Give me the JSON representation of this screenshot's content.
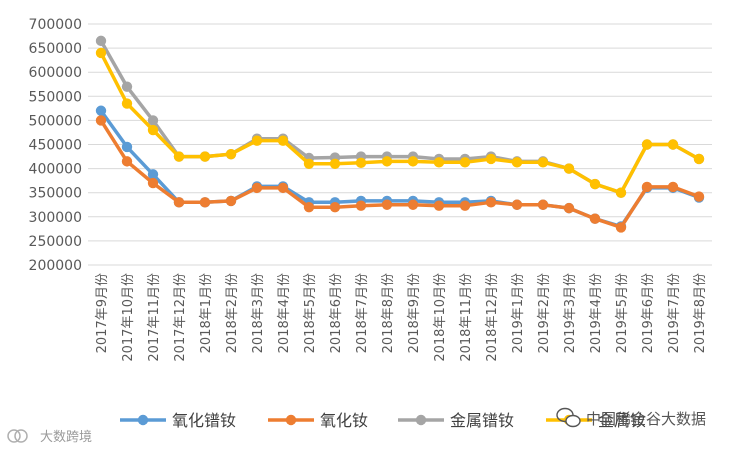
{
  "chart_data": {
    "type": "line",
    "title": "",
    "xlabel": "",
    "ylabel": "",
    "ylim": [
      200000,
      700000
    ],
    "ytick_step": 50000,
    "grid": true,
    "legend_position": "bottom",
    "categories": [
      "2017年9月份",
      "2017年10月份",
      "2017年11月份",
      "2017年12月份",
      "2018年1月份",
      "2018年2月份",
      "2018年3月份",
      "2018年4月份",
      "2018年5月份",
      "2018年6月份",
      "2018年7月份",
      "2018年8月份",
      "2018年9月份",
      "2018年10月份",
      "2018年11月份",
      "2018年12月份",
      "2019年1月份",
      "2019年2月份",
      "2019年3月份",
      "2019年4月份",
      "2019年5月份",
      "2019年6月份",
      "2019年7月份",
      "2019年8月份"
    ],
    "series": [
      {
        "name": "氧化镨钕",
        "color": "#5B9BD5",
        "values": [
          520000,
          445000,
          388000,
          330000,
          330000,
          333000,
          363000,
          363000,
          330000,
          330000,
          333000,
          333000,
          333000,
          330000,
          330000,
          333000,
          325000,
          325000,
          318000,
          296000,
          280000,
          360000,
          360000,
          340000
        ]
      },
      {
        "name": "氧化钕",
        "color": "#ED7D31",
        "values": [
          500000,
          415000,
          370000,
          330000,
          330000,
          333000,
          360000,
          360000,
          320000,
          320000,
          323000,
          325000,
          325000,
          323000,
          323000,
          330000,
          325000,
          325000,
          318000,
          296000,
          278000,
          362000,
          362000,
          342000
        ]
      },
      {
        "name": "金属镨钕",
        "color": "#A5A5A5",
        "values": [
          665000,
          570000,
          500000,
          425000,
          425000,
          430000,
          462000,
          462000,
          422000,
          423000,
          425000,
          425000,
          425000,
          420000,
          420000,
          425000,
          415000,
          415000,
          400000,
          368000,
          350000,
          450000,
          450000,
          420000
        ]
      },
      {
        "name": "金属钕",
        "color": "#FFC000",
        "values": [
          640000,
          535000,
          480000,
          425000,
          425000,
          430000,
          458000,
          458000,
          410000,
          410000,
          412000,
          415000,
          415000,
          413000,
          413000,
          420000,
          413000,
          413000,
          400000,
          368000,
          350000,
          450000,
          450000,
          420000
        ]
      }
    ]
  },
  "watermarks": {
    "right": "中国稀金谷大数据",
    "left": "大数跨境"
  }
}
